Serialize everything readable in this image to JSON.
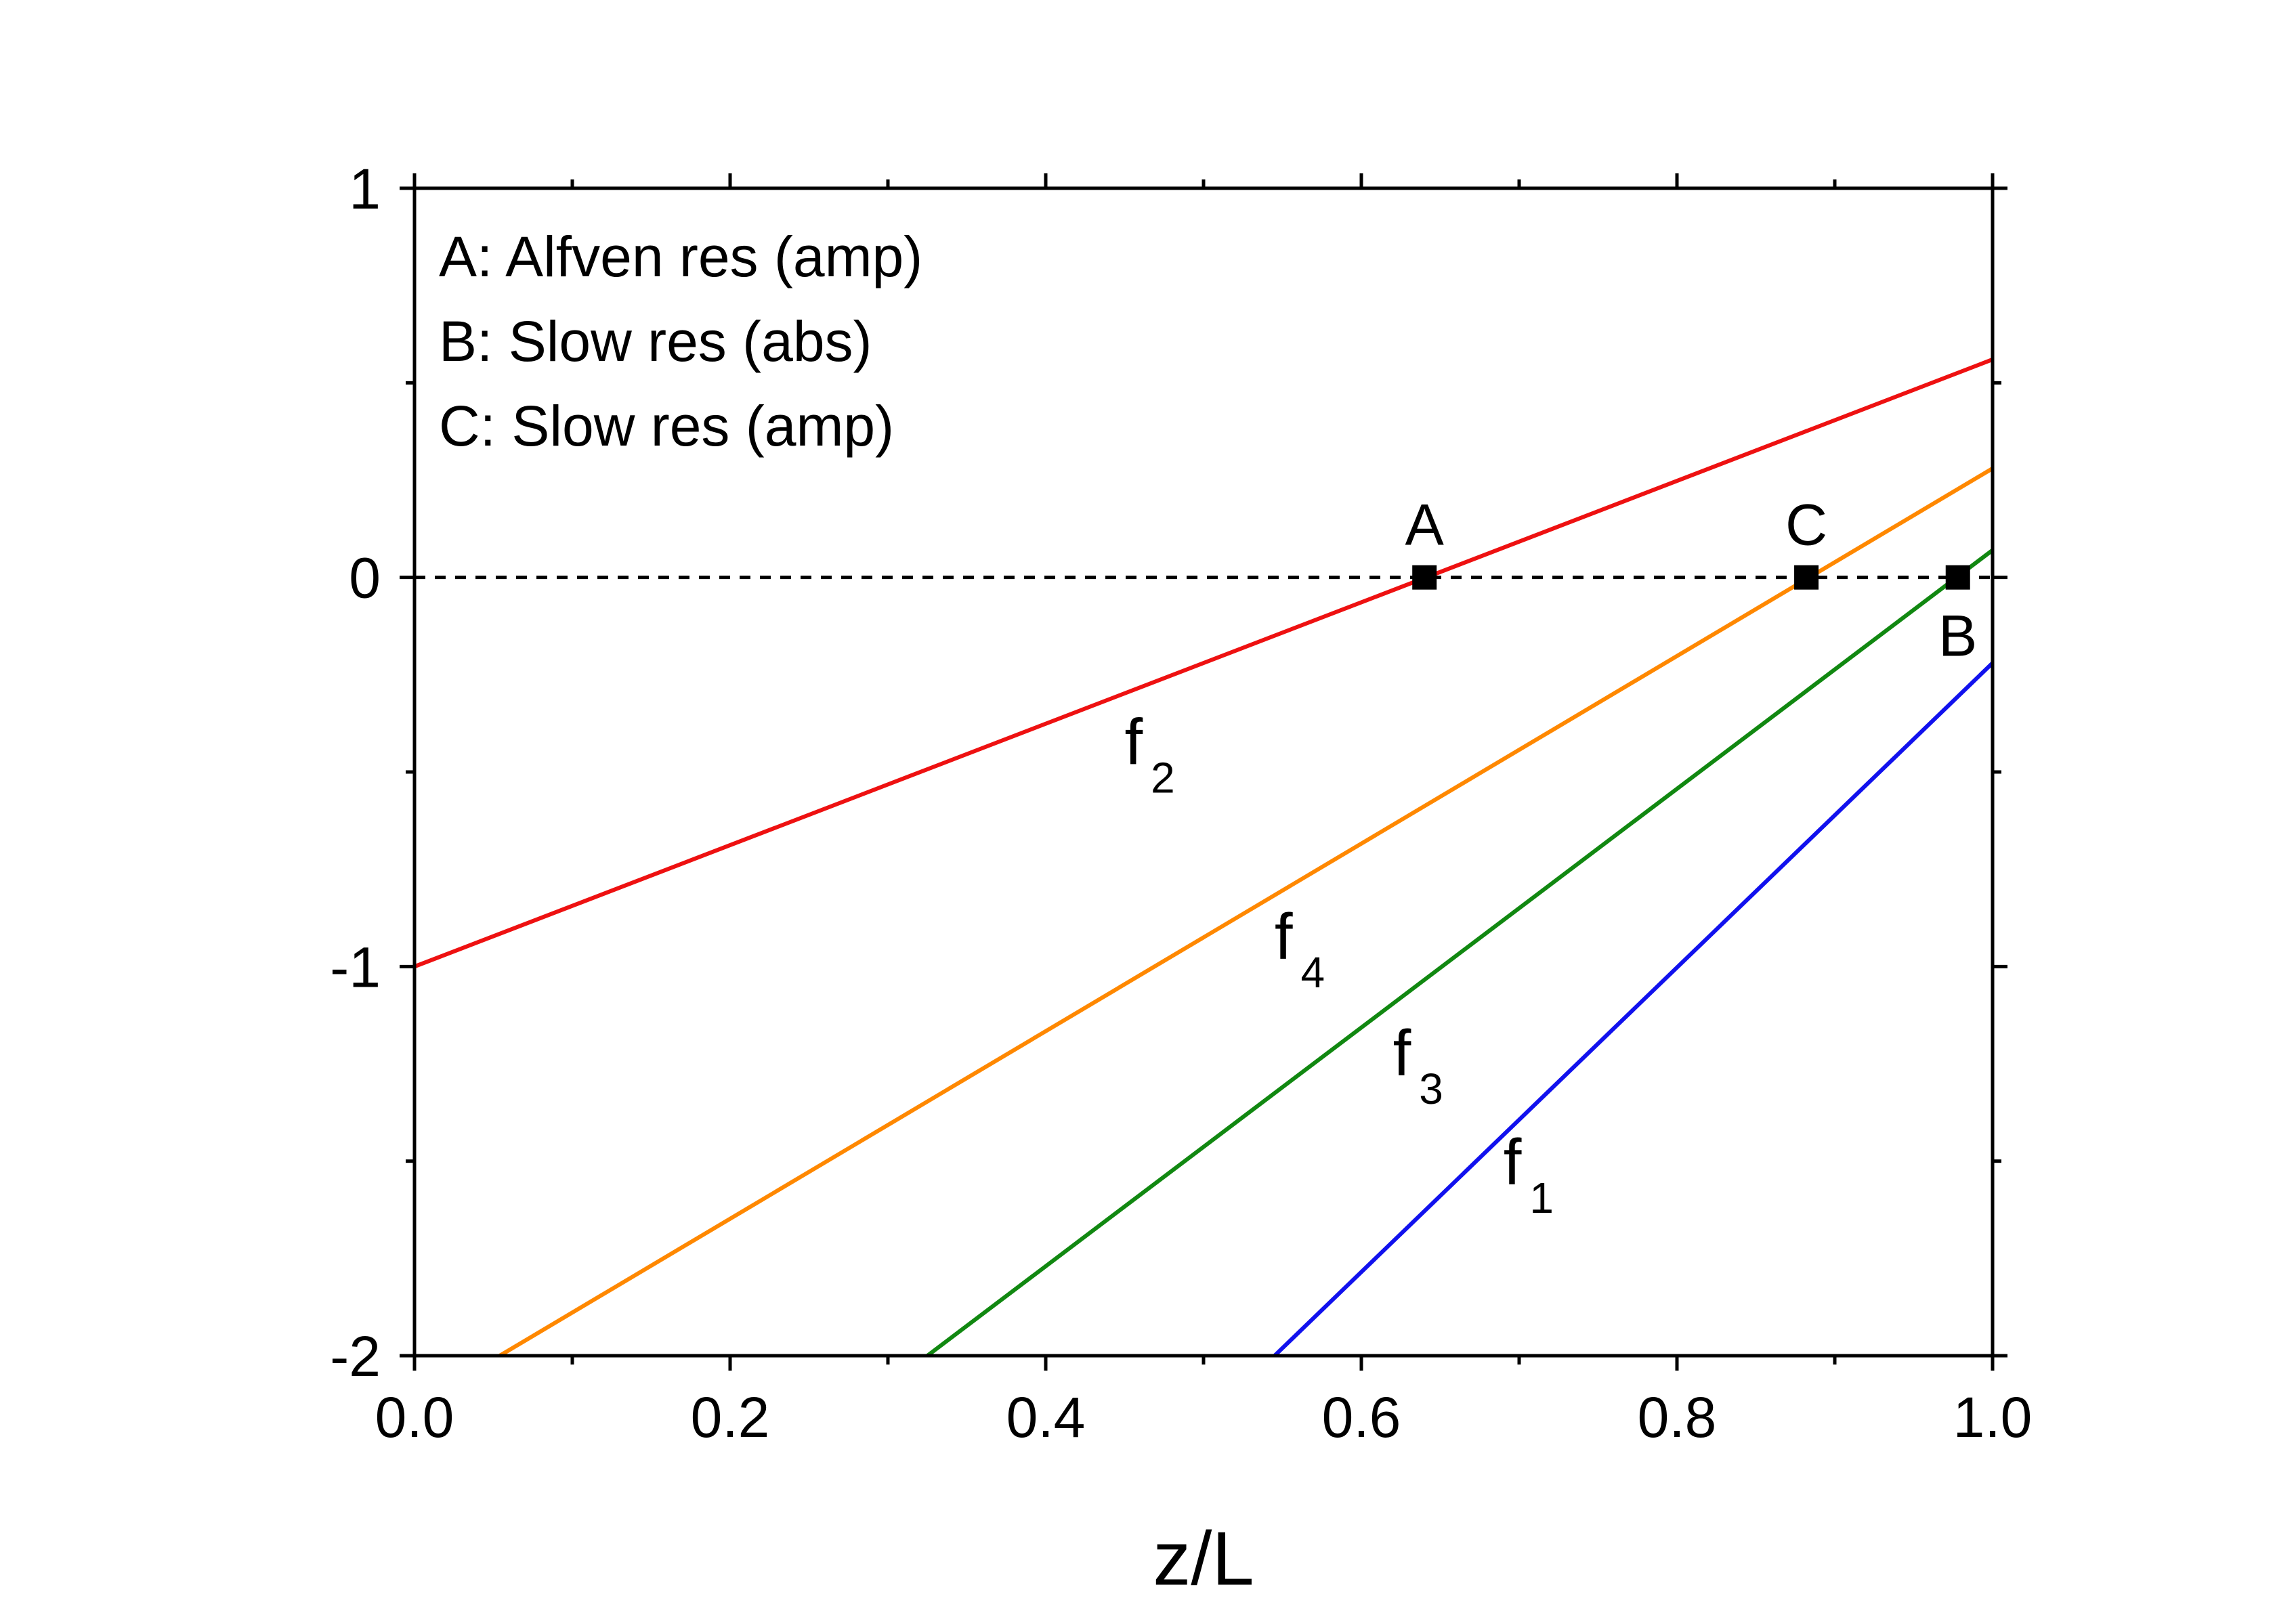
{
  "chart_data": {
    "type": "line",
    "title": "",
    "xlabel": "z/L",
    "ylabel": "",
    "xlim": [
      0.0,
      1.0
    ],
    "ylim": [
      -2,
      1
    ],
    "x_ticks": [
      0.0,
      0.2,
      0.4,
      0.6,
      0.8,
      1.0
    ],
    "x_tick_labels": [
      "0.0",
      "0.2",
      "0.4",
      "0.6",
      "0.8",
      "1.0"
    ],
    "y_ticks": [
      1,
      0,
      -1,
      -2
    ],
    "y_tick_labels": [
      "1",
      "0",
      "-1",
      "-2"
    ],
    "grid": false,
    "reference_line": {
      "y": 0,
      "style": "dashed",
      "color": "#000000"
    },
    "legend_text": [
      "A: Alfven res (amp)",
      "B: Slow res (abs)",
      "C: Slow res (amp)"
    ],
    "series": [
      {
        "name": "f2",
        "label_base": "f",
        "label_sub": "2",
        "color": "#ee1111",
        "x": [
          0.0,
          1.0
        ],
        "y": [
          -1.0,
          0.56
        ]
      },
      {
        "name": "f4",
        "label_base": "f",
        "label_sub": "4",
        "color": "#ff8800",
        "x": [
          0.054,
          1.0
        ],
        "y": [
          -2.0,
          0.28
        ]
      },
      {
        "name": "f3",
        "label_base": "f",
        "label_sub": "3",
        "color": "#118811",
        "x": [
          0.325,
          1.0
        ],
        "y": [
          -2.0,
          0.07
        ]
      },
      {
        "name": "f1",
        "label_base": "f",
        "label_sub": "1",
        "color": "#1111ee",
        "x": [
          0.545,
          1.0
        ],
        "y": [
          -2.0,
          -0.22
        ]
      }
    ],
    "curve_labels": [
      {
        "series": "f2",
        "x": 0.45,
        "y": -0.48
      },
      {
        "series": "f4",
        "x": 0.545,
        "y": -0.98
      },
      {
        "series": "f3",
        "x": 0.62,
        "y": -1.28
      },
      {
        "series": "f1",
        "x": 0.69,
        "y": -1.56
      }
    ],
    "points": [
      {
        "label": "A",
        "x": 0.64,
        "y": 0.0,
        "label_pos": "above"
      },
      {
        "label": "C",
        "x": 0.882,
        "y": 0.0,
        "label_pos": "above"
      },
      {
        "label": "B",
        "x": 0.978,
        "y": 0.0,
        "label_pos": "below"
      }
    ]
  }
}
